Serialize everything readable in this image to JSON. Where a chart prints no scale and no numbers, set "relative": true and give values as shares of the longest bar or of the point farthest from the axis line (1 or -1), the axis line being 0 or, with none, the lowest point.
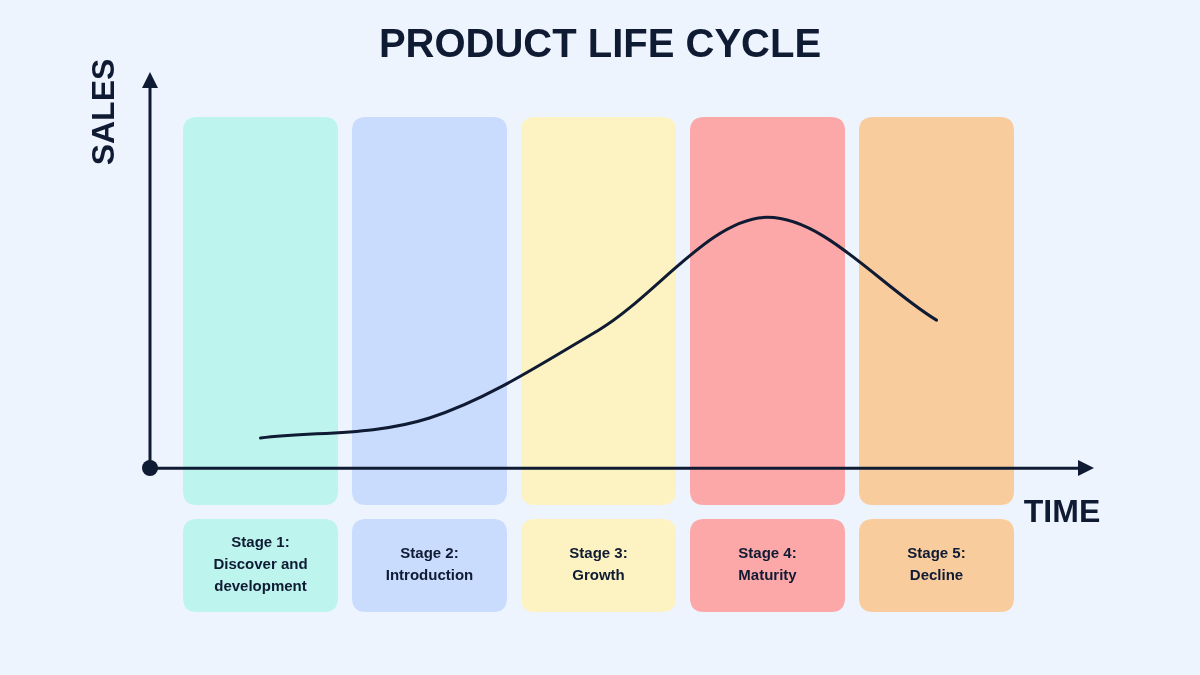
{
  "chart_data": {
    "type": "line",
    "title": "PRODUCT LIFE CYCLE",
    "xlabel": "TIME",
    "ylabel": "SALES",
    "relative": true,
    "legend": false,
    "marker": "none",
    "line_style": "solid",
    "categories": [
      "Stage 1: Discover and development",
      "Stage 2: Introduction",
      "Stage 3: Growth",
      "Stage 4: Maturity",
      "Stage 5: Decline"
    ],
    "series": [
      {
        "color": "#0f1a33",
        "values": [
          0.12,
          0.2,
          0.55,
          1,
          0.59
        ]
      }
    ],
    "bands": [
      {
        "axis": "x",
        "from": "Stage 1: Discover and development",
        "to": "Stage 1: Discover and development",
        "color": "#bdf5ee"
      },
      {
        "axis": "x",
        "from": "Stage 2: Introduction",
        "to": "Stage 2: Introduction",
        "color": "#c9dcfd"
      },
      {
        "axis": "x",
        "from": "Stage 3: Growth",
        "to": "Stage 3: Growth",
        "color": "#fdf3c2"
      },
      {
        "axis": "x",
        "from": "Stage 4: Maturity",
        "to": "Stage 4: Maturity",
        "color": "#fda8a8"
      },
      {
        "axis": "x",
        "from": "Stage 5: Decline",
        "to": "Stage 5: Decline",
        "color": "#f9cc9e"
      }
    ]
  }
}
